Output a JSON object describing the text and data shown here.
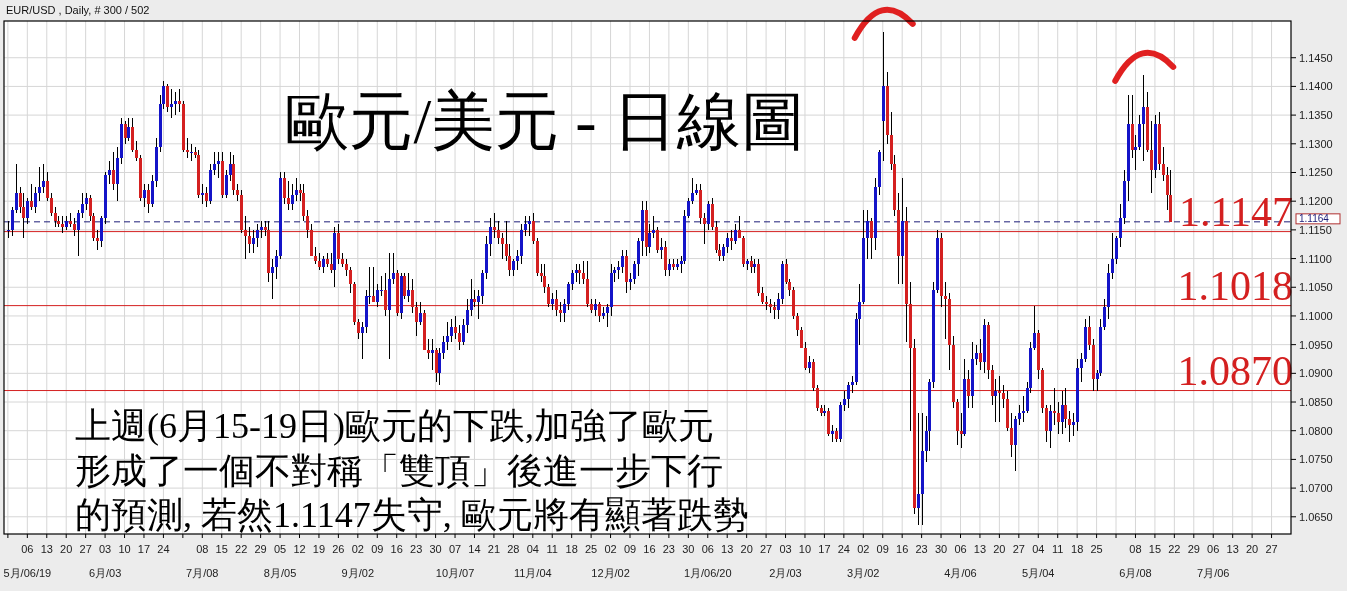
{
  "chart_data": {
    "type": "candlestick",
    "title": "歐元/美元 - 日線圖",
    "subtitle": "EUR/USD , Daily, # 300 / 502",
    "annotations": [
      "上週(6月15-19日)歐元的下跌,加強了歐元",
      "形成了一個不對稱「雙頂」後進一步下行",
      "的預測, 若然1.1147失守, 歐元將有顯著跌勢"
    ],
    "grid": true,
    "ylim": [
      1.062,
      1.1514
    ],
    "yticks": [
      {
        "value": 1.065,
        "label": "1.0650"
      },
      {
        "value": 1.07,
        "label": "1.0700"
      },
      {
        "value": 1.075,
        "label": "1.0750"
      },
      {
        "value": 1.08,
        "label": "1.0800"
      },
      {
        "value": 1.085,
        "label": "1.0850"
      },
      {
        "value": 1.09,
        "label": "1.0900"
      },
      {
        "value": 1.095,
        "label": "1.0950"
      },
      {
        "value": 1.1,
        "label": "1.1000"
      },
      {
        "value": 1.105,
        "label": "1.1050"
      },
      {
        "value": 1.11,
        "label": "1.1100"
      },
      {
        "value": 1.115,
        "label": "1.1150"
      },
      {
        "value": 1.12,
        "label": "1.1200"
      },
      {
        "value": 1.125,
        "label": "1.1250"
      },
      {
        "value": 1.13,
        "label": "1.1300"
      },
      {
        "value": 1.135,
        "label": "1.1350"
      },
      {
        "value": 1.14,
        "label": "1.1400"
      },
      {
        "value": 1.145,
        "label": "1.1450"
      }
    ],
    "ref_lines": [
      {
        "axis": "y",
        "value": 1.1164,
        "label": "1.1164",
        "color": "#1c1c78",
        "line_style": "dashed"
      },
      {
        "axis": "y",
        "value": 1.1147,
        "label": "1.1147",
        "color": "#d42020"
      },
      {
        "axis": "y",
        "value": 1.1018,
        "label": "1.1018",
        "color": "#d42020"
      },
      {
        "axis": "y",
        "value": 1.087,
        "label": "1.0870",
        "color": "#d42020"
      }
    ],
    "categories": [
      null,
      null,
      null,
      null,
      null,
      "06\n5月/06/19",
      null,
      null,
      null,
      null,
      "13",
      null,
      null,
      null,
      null,
      "20",
      null,
      null,
      null,
      null,
      "27",
      null,
      null,
      null,
      null,
      "03\n6月/03",
      null,
      null,
      null,
      null,
      "10",
      null,
      null,
      null,
      null,
      "17",
      null,
      null,
      null,
      null,
      "24",
      null,
      null,
      null,
      null,
      null,
      null,
      null,
      null,
      null,
      "08\n7月/08",
      null,
      null,
      null,
      null,
      "15",
      null,
      null,
      null,
      null,
      "22",
      null,
      null,
      null,
      null,
      "29",
      null,
      null,
      null,
      null,
      "05\n8月/05",
      null,
      null,
      null,
      null,
      "12",
      null,
      null,
      null,
      null,
      "19",
      null,
      null,
      null,
      null,
      "26",
      null,
      null,
      null,
      null,
      "02\n9月/02",
      null,
      null,
      null,
      null,
      "09",
      null,
      null,
      null,
      null,
      "16",
      null,
      null,
      null,
      null,
      "23",
      null,
      null,
      null,
      null,
      "30",
      null,
      null,
      null,
      null,
      "07\n10月/07",
      null,
      null,
      null,
      null,
      "14",
      null,
      null,
      null,
      null,
      "21",
      null,
      null,
      null,
      null,
      "28",
      null,
      null,
      null,
      null,
      "04\n11月/04",
      null,
      null,
      null,
      null,
      "11",
      null,
      null,
      null,
      null,
      "18",
      null,
      null,
      null,
      null,
      "25",
      null,
      null,
      null,
      null,
      "02\n12月/02",
      null,
      null,
      null,
      null,
      "09",
      null,
      null,
      null,
      null,
      "16",
      null,
      null,
      null,
      null,
      "23",
      null,
      null,
      null,
      null,
      "30",
      null,
      null,
      null,
      null,
      "06\n1月/06/20",
      null,
      null,
      null,
      null,
      "13",
      null,
      null,
      null,
      null,
      "20",
      null,
      null,
      null,
      null,
      "27",
      null,
      null,
      null,
      null,
      "03\n2月/03",
      null,
      null,
      null,
      null,
      "10",
      null,
      null,
      null,
      null,
      "17",
      null,
      null,
      null,
      null,
      "24",
      null,
      null,
      null,
      null,
      "02\n3月/02",
      null,
      null,
      null,
      null,
      "09",
      null,
      null,
      null,
      null,
      "16",
      null,
      null,
      null,
      null,
      "23",
      null,
      null,
      null,
      null,
      "30",
      null,
      null,
      null,
      null,
      "06\n4月/06",
      null,
      null,
      null,
      null,
      "13",
      null,
      null,
      null,
      null,
      "20",
      null,
      null,
      null,
      null,
      "27",
      null,
      null,
      null,
      null,
      "04\n5月/04",
      null,
      null,
      null,
      null,
      "11",
      null,
      null,
      null,
      null,
      "18",
      null,
      null,
      null,
      null,
      "25",
      null,
      null,
      null,
      null,
      null,
      null,
      null,
      null,
      null,
      "08\n6月/08",
      null,
      null,
      null,
      null,
      "15",
      null,
      null,
      null,
      null,
      "22",
      null,
      null,
      null,
      null,
      "29",
      null,
      null,
      null,
      null,
      "06\n7月/06",
      null,
      null,
      null,
      null,
      "13",
      null,
      null,
      null,
      null,
      "20",
      null,
      null,
      null,
      null,
      "27",
      null,
      null,
      null,
      null
    ],
    "ohlc": [
      [
        1.115,
        1.1165,
        1.1135,
        1.115
      ],
      [
        1.115,
        1.119,
        1.114,
        1.1185
      ],
      [
        1.1185,
        1.1265,
        1.118,
        1.1215
      ],
      [
        1.1215,
        1.1225,
        1.118,
        1.119
      ],
      [
        1.119,
        1.1215,
        1.1135,
        1.117
      ],
      [
        1.117,
        1.1205,
        1.116,
        1.12
      ],
      [
        1.12,
        1.123,
        1.1185,
        1.119
      ],
      [
        1.119,
        1.1225,
        1.118,
        1.1215
      ],
      [
        1.1215,
        1.126,
        1.12,
        1.1225
      ],
      [
        1.1225,
        1.1265,
        1.1215,
        1.1235
      ],
      [
        1.1235,
        1.125,
        1.12,
        1.1205
      ],
      [
        1.1205,
        1.1215,
        1.1175,
        1.118
      ],
      [
        1.118,
        1.119,
        1.1155,
        1.1165
      ],
      [
        1.1165,
        1.1175,
        1.1155,
        1.116
      ],
      [
        1.116,
        1.1175,
        1.1145,
        1.1155
      ],
      [
        1.1155,
        1.1175,
        1.115,
        1.1165
      ],
      [
        1.1165,
        1.118,
        1.1155,
        1.116
      ],
      [
        1.116,
        1.117,
        1.114,
        1.115
      ],
      [
        1.115,
        1.1185,
        1.1105,
        1.118
      ],
      [
        1.118,
        1.1215,
        1.117,
        1.1195
      ],
      [
        1.1195,
        1.1215,
        1.1185,
        1.1205
      ],
      [
        1.1205,
        1.121,
        1.1165,
        1.1175
      ],
      [
        1.1175,
        1.118,
        1.113,
        1.1135
      ],
      [
        1.1135,
        1.115,
        1.1115,
        1.113
      ],
      [
        1.113,
        1.1175,
        1.112,
        1.117
      ],
      [
        1.117,
        1.125,
        1.116,
        1.1245
      ],
      [
        1.1245,
        1.127,
        1.123,
        1.1255
      ],
      [
        1.1255,
        1.1285,
        1.122,
        1.123
      ],
      [
        1.123,
        1.1295,
        1.12,
        1.1275
      ],
      [
        1.1275,
        1.1345,
        1.1265,
        1.1335
      ],
      [
        1.1335,
        1.134,
        1.13,
        1.131
      ],
      [
        1.131,
        1.1345,
        1.1305,
        1.133
      ],
      [
        1.133,
        1.1345,
        1.1285,
        1.129
      ],
      [
        1.129,
        1.1305,
        1.127,
        1.1275
      ],
      [
        1.1275,
        1.128,
        1.12,
        1.1205
      ],
      [
        1.1205,
        1.123,
        1.119,
        1.122
      ],
      [
        1.122,
        1.123,
        1.118,
        1.1195
      ],
      [
        1.1195,
        1.1245,
        1.119,
        1.1235
      ],
      [
        1.1235,
        1.131,
        1.1225,
        1.1295
      ],
      [
        1.1295,
        1.1385,
        1.1285,
        1.137
      ],
      [
        1.137,
        1.141,
        1.136,
        1.14
      ],
      [
        1.14,
        1.1405,
        1.1355,
        1.1365
      ],
      [
        1.1365,
        1.1395,
        1.1345,
        1.137
      ],
      [
        1.137,
        1.139,
        1.135,
        1.1375
      ],
      [
        1.1375,
        1.1395,
        1.1355,
        1.137
      ],
      [
        1.137,
        1.1375,
        1.1285,
        1.129
      ],
      [
        1.129,
        1.131,
        1.1275,
        1.1285
      ],
      [
        1.1285,
        1.13,
        1.127,
        1.1285
      ],
      [
        1.1285,
        1.1295,
        1.1275,
        1.128
      ],
      [
        1.128,
        1.129,
        1.1205,
        1.121
      ],
      [
        1.121,
        1.123,
        1.1195,
        1.1215
      ],
      [
        1.1215,
        1.1225,
        1.119,
        1.12
      ],
      [
        1.12,
        1.1265,
        1.1195,
        1.1255
      ],
      [
        1.1255,
        1.1285,
        1.1245,
        1.1265
      ],
      [
        1.1265,
        1.1285,
        1.124,
        1.127
      ],
      [
        1.127,
        1.1285,
        1.1205,
        1.121
      ],
      [
        1.121,
        1.1255,
        1.1205,
        1.1245
      ],
      [
        1.1245,
        1.1285,
        1.1235,
        1.1265
      ],
      [
        1.1265,
        1.128,
        1.121,
        1.122
      ],
      [
        1.122,
        1.123,
        1.12,
        1.121
      ],
      [
        1.121,
        1.122,
        1.1145,
        1.115
      ],
      [
        1.115,
        1.1175,
        1.11,
        1.114
      ],
      [
        1.114,
        1.1155,
        1.111,
        1.1125
      ],
      [
        1.1125,
        1.115,
        1.111,
        1.1135
      ],
      [
        1.1135,
        1.116,
        1.112,
        1.115
      ],
      [
        1.115,
        1.1165,
        1.1135,
        1.1155
      ],
      [
        1.1155,
        1.1165,
        1.114,
        1.115
      ],
      [
        1.115,
        1.1165,
        1.106,
        1.1075
      ],
      [
        1.1075,
        1.11,
        1.103,
        1.1085
      ],
      [
        1.1085,
        1.1115,
        1.1065,
        1.1105
      ],
      [
        1.1105,
        1.125,
        1.11,
        1.124
      ],
      [
        1.124,
        1.125,
        1.1195,
        1.1205
      ],
      [
        1.1205,
        1.1235,
        1.1185,
        1.1195
      ],
      [
        1.1195,
        1.123,
        1.1185,
        1.121
      ],
      [
        1.121,
        1.124,
        1.12,
        1.122
      ],
      [
        1.122,
        1.123,
        1.12,
        1.1215
      ],
      [
        1.1215,
        1.123,
        1.1165,
        1.1175
      ],
      [
        1.1175,
        1.1185,
        1.1135,
        1.115
      ],
      [
        1.115,
        1.116,
        1.1105,
        1.1105
      ],
      [
        1.1105,
        1.112,
        1.109,
        1.1095
      ],
      [
        1.1095,
        1.111,
        1.108,
        1.1085
      ],
      [
        1.1085,
        1.1105,
        1.1075,
        1.11
      ],
      [
        1.11,
        1.111,
        1.1085,
        1.109
      ],
      [
        1.109,
        1.111,
        1.1075,
        1.108
      ],
      [
        1.108,
        1.1155,
        1.105,
        1.1145
      ],
      [
        1.1145,
        1.116,
        1.109,
        1.11
      ],
      [
        1.11,
        1.111,
        1.1085,
        1.109
      ],
      [
        1.109,
        1.11,
        1.107,
        1.108
      ],
      [
        1.108,
        1.1085,
        1.104,
        1.1055
      ],
      [
        1.1055,
        1.106,
        1.0985,
        1.099
      ],
      [
        1.099,
        1.0995,
        1.096,
        1.097
      ],
      [
        1.097,
        1.099,
        1.0925,
        1.098
      ],
      [
        1.098,
        1.1045,
        1.097,
        1.1035
      ],
      [
        1.1035,
        1.1085,
        1.102,
        1.1035
      ],
      [
        1.1035,
        1.1085,
        1.1025,
        1.1025
      ],
      [
        1.1025,
        1.1055,
        1.1015,
        1.1045
      ],
      [
        1.1045,
        1.107,
        1.1035,
        1.1045
      ],
      [
        1.1045,
        1.1075,
        1.1,
        1.101
      ],
      [
        1.101,
        1.111,
        1.0925,
        1.1065
      ],
      [
        1.1065,
        1.111,
        1.1055,
        1.1075
      ],
      [
        1.1075,
        1.108,
        1.1,
        1.1005
      ],
      [
        1.1005,
        1.1075,
        1.0995,
        1.107
      ],
      [
        1.107,
        1.1075,
        1.103,
        1.1035
      ],
      [
        1.1035,
        1.1075,
        1.1025,
        1.1045
      ],
      [
        1.1045,
        1.1065,
        1.1005,
        1.1015
      ],
      [
        1.1015,
        1.1025,
        1.0965,
        1.099
      ],
      [
        1.099,
        1.1025,
        1.0985,
        1.1005
      ],
      [
        1.1005,
        1.101,
        1.094,
        1.094
      ],
      [
        1.094,
        1.096,
        1.0925,
        1.0935
      ],
      [
        1.0935,
        1.096,
        1.0905,
        1.094
      ],
      [
        1.094,
        1.0945,
        1.0885,
        1.09
      ],
      [
        1.09,
        1.0945,
        1.088,
        1.0935
      ],
      [
        1.0935,
        1.0965,
        1.0925,
        1.0955
      ],
      [
        1.0955,
        1.099,
        1.094,
        1.0965
      ],
      [
        1.0965,
        1.0995,
        1.0955,
        1.098
      ],
      [
        1.098,
        1.1,
        1.096,
        1.097
      ],
      [
        1.097,
        1.0985,
        1.094,
        1.0955
      ],
      [
        1.0955,
        1.0995,
        1.095,
        1.0985
      ],
      [
        1.0985,
        1.103,
        1.097,
        1.101
      ],
      [
        1.101,
        1.1065,
        1.1,
        1.103
      ],
      [
        1.103,
        1.1045,
        1.1015,
        1.1025
      ],
      [
        1.1025,
        1.1045,
        1.0995,
        1.1035
      ],
      [
        1.1035,
        1.108,
        1.102,
        1.1075
      ],
      [
        1.1075,
        1.114,
        1.1065,
        1.1125
      ],
      [
        1.1125,
        1.117,
        1.1105,
        1.1155
      ],
      [
        1.1155,
        1.118,
        1.1135,
        1.115
      ],
      [
        1.115,
        1.1165,
        1.1125,
        1.1135
      ],
      [
        1.1135,
        1.1145,
        1.11,
        1.1125
      ],
      [
        1.1125,
        1.1165,
        1.1095,
        1.1105
      ],
      [
        1.1105,
        1.1125,
        1.107,
        1.108
      ],
      [
        1.108,
        1.11,
        1.107,
        1.1095
      ],
      [
        1.1095,
        1.1115,
        1.108,
        1.1105
      ],
      [
        1.1105,
        1.116,
        1.109,
        1.115
      ],
      [
        1.115,
        1.1175,
        1.114,
        1.116
      ],
      [
        1.116,
        1.1175,
        1.114,
        1.1165
      ],
      [
        1.1165,
        1.118,
        1.1125,
        1.113
      ],
      [
        1.113,
        1.1135,
        1.107,
        1.1075
      ],
      [
        1.1075,
        1.109,
        1.106,
        1.107
      ],
      [
        1.107,
        1.109,
        1.104,
        1.105
      ],
      [
        1.105,
        1.1055,
        1.1015,
        1.102
      ],
      [
        1.102,
        1.104,
        1.101,
        1.103
      ],
      [
        1.103,
        1.1045,
        1.1,
        1.101
      ],
      [
        1.101,
        1.1025,
        1.099,
        1.1005
      ],
      [
        1.1005,
        1.103,
        1.099,
        1.102
      ],
      [
        1.102,
        1.106,
        1.101,
        1.1055
      ],
      [
        1.1055,
        1.108,
        1.1045,
        1.1075
      ],
      [
        1.1075,
        1.109,
        1.106,
        1.108
      ],
      [
        1.108,
        1.109,
        1.1055,
        1.1075
      ],
      [
        1.1075,
        1.1095,
        1.1055,
        1.1065
      ],
      [
        1.1065,
        1.1095,
        1.1015,
        1.102
      ],
      [
        1.102,
        1.103,
        1.1005,
        1.101
      ],
      [
        1.101,
        1.103,
        1.1,
        1.102
      ],
      [
        1.102,
        1.1025,
        1.099,
        1.1
      ],
      [
        1.1,
        1.1015,
        1.0995,
        1.1005
      ],
      [
        1.1005,
        1.102,
        1.098,
        1.1015
      ],
      [
        1.1015,
        1.109,
        1.1,
        1.1075
      ],
      [
        1.1075,
        1.1085,
        1.106,
        1.108
      ],
      [
        1.108,
        1.1095,
        1.1065,
        1.1085
      ],
      [
        1.1085,
        1.1115,
        1.1075,
        1.1105
      ],
      [
        1.1105,
        1.1115,
        1.104,
        1.106
      ],
      [
        1.106,
        1.1075,
        1.1045,
        1.1065
      ],
      [
        1.1065,
        1.1095,
        1.1055,
        1.109
      ],
      [
        1.109,
        1.1135,
        1.107,
        1.113
      ],
      [
        1.113,
        1.12,
        1.1105,
        1.1185
      ],
      [
        1.1185,
        1.12,
        1.1105,
        1.112
      ],
      [
        1.112,
        1.116,
        1.111,
        1.1145
      ],
      [
        1.1145,
        1.1175,
        1.1135,
        1.115
      ],
      [
        1.115,
        1.1155,
        1.111,
        1.1115
      ],
      [
        1.1115,
        1.1135,
        1.11,
        1.112
      ],
      [
        1.112,
        1.113,
        1.107,
        1.108
      ],
      [
        1.108,
        1.11,
        1.107,
        1.109
      ],
      [
        1.109,
        1.11,
        1.108,
        1.1085
      ],
      [
        1.1085,
        1.11,
        1.108,
        1.109
      ],
      [
        1.109,
        1.1105,
        1.1075,
        1.1095
      ],
      [
        1.1095,
        1.1185,
        1.109,
        1.1175
      ],
      [
        1.1175,
        1.1205,
        1.117,
        1.12
      ],
      [
        1.12,
        1.124,
        1.1195,
        1.1215
      ],
      [
        1.1215,
        1.123,
        1.121,
        1.122
      ],
      [
        1.122,
        1.123,
        1.116,
        1.117
      ],
      [
        1.117,
        1.118,
        1.1125,
        1.116
      ],
      [
        1.116,
        1.12,
        1.115,
        1.1195
      ],
      [
        1.1195,
        1.1205,
        1.115,
        1.1155
      ],
      [
        1.1155,
        1.1165,
        1.111,
        1.1115
      ],
      [
        1.1115,
        1.1125,
        1.1095,
        1.1105
      ],
      [
        1.1105,
        1.1125,
        1.1095,
        1.112
      ],
      [
        1.112,
        1.1145,
        1.111,
        1.1135
      ],
      [
        1.1135,
        1.115,
        1.1115,
        1.113
      ],
      [
        1.113,
        1.116,
        1.1125,
        1.115
      ],
      [
        1.115,
        1.1175,
        1.1135,
        1.1135
      ],
      [
        1.1135,
        1.114,
        1.1085,
        1.109
      ],
      [
        1.109,
        1.11,
        1.108,
        1.1095
      ],
      [
        1.1095,
        1.1105,
        1.1075,
        1.1085
      ],
      [
        1.1085,
        1.11,
        1.1075,
        1.109
      ],
      [
        1.109,
        1.11,
        1.1035,
        1.104
      ],
      [
        1.104,
        1.105,
        1.102,
        1.1025
      ],
      [
        1.1025,
        1.1035,
        1.101,
        1.102
      ],
      [
        1.102,
        1.103,
        1.1005,
        1.1015
      ],
      [
        1.1015,
        1.1025,
        1.0995,
        1.101
      ],
      [
        1.101,
        1.104,
        1.0995,
        1.103
      ],
      [
        1.103,
        1.1095,
        1.102,
        1.109
      ],
      [
        1.109,
        1.11,
        1.1055,
        1.106
      ],
      [
        1.106,
        1.1065,
        1.1035,
        1.1045
      ],
      [
        1.1045,
        1.105,
        1.0995,
        1.1
      ],
      [
        1.1,
        1.1005,
        1.0965,
        1.0975
      ],
      [
        1.0975,
        1.098,
        1.0945,
        1.0945
      ],
      [
        1.0945,
        1.0955,
        1.0905,
        1.091
      ],
      [
        1.091,
        1.093,
        1.09,
        1.092
      ],
      [
        1.092,
        1.0925,
        1.087,
        1.0875
      ],
      [
        1.0875,
        1.088,
        1.0835,
        1.084
      ],
      [
        1.084,
        1.0845,
        1.0825,
        1.083
      ],
      [
        1.083,
        1.0845,
        1.0825,
        1.0835
      ],
      [
        1.0835,
        1.084,
        1.079,
        1.0795
      ],
      [
        1.0795,
        1.081,
        1.078,
        1.08
      ],
      [
        1.08,
        1.0805,
        1.078,
        1.0785
      ],
      [
        1.0785,
        1.085,
        1.078,
        1.0845
      ],
      [
        1.0845,
        1.087,
        1.0835,
        1.0855
      ],
      [
        1.0855,
        1.0885,
        1.084,
        1.088
      ],
      [
        1.088,
        1.0895,
        1.0865,
        1.0885
      ],
      [
        1.0885,
        1.1005,
        1.088,
        1.0995
      ],
      [
        1.0995,
        1.1055,
        1.095,
        1.1025
      ],
      [
        1.1025,
        1.1185,
        1.102,
        1.1135
      ],
      [
        1.1135,
        1.1185,
        1.11,
        1.1165
      ],
      [
        1.1165,
        1.117,
        1.11,
        1.1135
      ],
      [
        1.1135,
        1.124,
        1.1115,
        1.1225
      ],
      [
        1.1225,
        1.129,
        1.121,
        1.1285
      ],
      [
        1.134,
        1.1495,
        1.127,
        1.14
      ],
      [
        1.14,
        1.1425,
        1.13,
        1.1315
      ],
      [
        1.1315,
        1.1355,
        1.1255,
        1.1265
      ],
      [
        1.1265,
        1.128,
        1.1175,
        1.1185
      ],
      [
        1.1185,
        1.1215,
        1.1055,
        1.1105
      ],
      [
        1.1105,
        1.124,
        1.1055,
        1.1165
      ],
      [
        1.1165,
        1.119,
        1.0955,
        1.102
      ],
      [
        1.102,
        1.106,
        1.08,
        1.0945
      ],
      [
        1.0945,
        1.096,
        1.0655,
        1.0665
      ],
      [
        1.0665,
        1.083,
        1.0635,
        1.069
      ],
      [
        1.069,
        1.083,
        1.0635,
        1.0765
      ],
      [
        1.0765,
        1.0825,
        1.0745,
        1.08
      ],
      [
        1.08,
        1.089,
        1.0765,
        1.0885
      ],
      [
        1.0885,
        1.106,
        1.0875,
        1.1045
      ],
      [
        1.1045,
        1.115,
        1.104,
        1.1135
      ],
      [
        1.1135,
        1.1145,
        1.1015,
        1.1035
      ],
      [
        1.1035,
        1.106,
        1.096,
        1.103
      ],
      [
        1.103,
        1.104,
        1.0905,
        1.095
      ],
      [
        1.095,
        1.0965,
        1.084,
        1.085
      ],
      [
        1.085,
        1.0855,
        1.0775,
        1.08
      ],
      [
        1.08,
        1.083,
        1.077,
        1.0795
      ],
      [
        1.0795,
        1.0925,
        1.079,
        1.089
      ],
      [
        1.089,
        1.0905,
        1.084,
        1.086
      ],
      [
        1.086,
        1.0955,
        1.084,
        1.0925
      ],
      [
        1.0925,
        1.095,
        1.0915,
        1.0935
      ],
      [
        1.0935,
        1.096,
        1.0905,
        1.092
      ],
      [
        1.092,
        1.0995,
        1.09,
        1.0985
      ],
      [
        1.0985,
        1.099,
        1.089,
        1.0905
      ],
      [
        1.0905,
        1.0915,
        1.0845,
        1.086
      ],
      [
        1.086,
        1.089,
        1.0815,
        1.087
      ],
      [
        1.087,
        1.0895,
        1.0815,
        1.0865
      ],
      [
        1.0865,
        1.088,
        1.084,
        1.0855
      ],
      [
        1.0855,
        1.087,
        1.08,
        1.0805
      ],
      [
        1.0805,
        1.083,
        1.0755,
        1.0775
      ],
      [
        1.0775,
        1.0825,
        1.073,
        1.082
      ],
      [
        1.082,
        1.0845,
        1.081,
        1.083
      ],
      [
        1.083,
        1.086,
        1.0815,
        1.0835
      ],
      [
        1.0835,
        1.0885,
        1.083,
        1.0875
      ],
      [
        1.0875,
        1.0955,
        1.0865,
        1.0945
      ],
      [
        1.0945,
        1.1018,
        1.094,
        1.097
      ],
      [
        1.097,
        1.0975,
        1.089,
        1.0905
      ],
      [
        1.0905,
        1.091,
        1.083,
        1.084
      ],
      [
        1.084,
        1.0845,
        1.078,
        1.08
      ],
      [
        1.08,
        1.0845,
        1.077,
        1.0835
      ],
      [
        1.0835,
        1.0875,
        1.081,
        1.083
      ],
      [
        1.083,
        1.085,
        1.0795,
        1.0815
      ],
      [
        1.0815,
        1.087,
        1.0795,
        1.0845
      ],
      [
        1.0845,
        1.0875,
        1.0805,
        1.082
      ],
      [
        1.082,
        1.0835,
        1.078,
        1.081
      ],
      [
        1.081,
        1.083,
        1.079,
        1.0815
      ],
      [
        1.0815,
        1.0925,
        1.08,
        1.091
      ],
      [
        1.091,
        1.0935,
        1.0885,
        1.0925
      ],
      [
        1.0925,
        1.0995,
        1.092,
        1.098
      ],
      [
        1.098,
        1.1,
        1.094,
        1.095
      ],
      [
        1.095,
        1.096,
        1.087,
        1.089
      ],
      [
        1.089,
        1.0905,
        1.087,
        1.09
      ],
      [
        1.09,
        1.0995,
        1.0895,
        1.098
      ],
      [
        1.098,
        1.103,
        1.0975,
        1.1015
      ],
      [
        1.1015,
        1.109,
        1.0995,
        1.1075
      ],
      [
        1.1075,
        1.1145,
        1.1065,
        1.11
      ],
      [
        1.11,
        1.114,
        1.109,
        1.1135
      ],
      [
        1.1135,
        1.1195,
        1.112,
        1.117
      ],
      [
        1.117,
        1.1255,
        1.116,
        1.1235
      ],
      [
        1.1235,
        1.1385,
        1.12,
        1.1335
      ],
      [
        1.1335,
        1.1385,
        1.1275,
        1.129
      ],
      [
        1.129,
        1.1315,
        1.1255,
        1.1295
      ],
      [
        1.1295,
        1.135,
        1.129,
        1.1335
      ],
      [
        1.1335,
        1.142,
        1.127,
        1.1365
      ],
      [
        1.1365,
        1.139,
        1.1285,
        1.129
      ],
      [
        1.129,
        1.134,
        1.1215,
        1.1255
      ],
      [
        1.1255,
        1.135,
        1.124,
        1.1335
      ],
      [
        1.1335,
        1.1355,
        1.1255,
        1.1265
      ],
      [
        1.1265,
        1.1295,
        1.1235,
        1.1245
      ],
      [
        1.1245,
        1.126,
        1.1185,
        1.121
      ],
      [
        1.121,
        1.1255,
        1.1164,
        1.1164
      ],
      null,
      null,
      null,
      null,
      null,
      null,
      null,
      null,
      null,
      null,
      null,
      null,
      null,
      null,
      null,
      null,
      null,
      null,
      null,
      null,
      null,
      null,
      null,
      null,
      null,
      null,
      null,
      null,
      null,
      null
    ]
  }
}
